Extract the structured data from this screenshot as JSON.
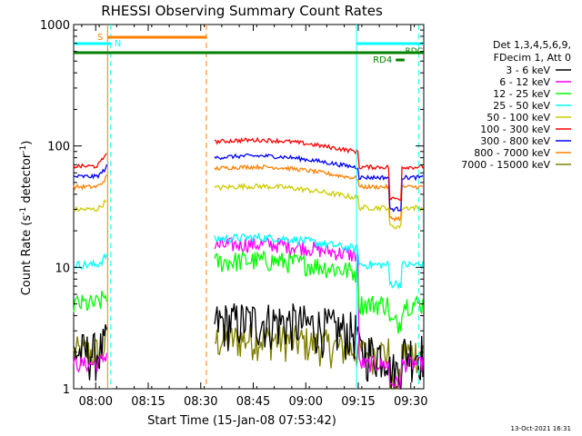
{
  "chart_data": {
    "type": "line",
    "title": "RHESSI Observing Summary Count Rates",
    "xlabel": "Start Time (15-Jan-08 07:53:42)",
    "ylabel_main": "Count Rate (s",
    "ylabel_sup1": "-1",
    "ylabel_mid": " detector",
    "ylabel_sup2": "-1",
    "ylabel_end": ")",
    "yscale": "log",
    "ylim": [
      1,
      1000
    ],
    "xlim_minutes": [
      0,
      100
    ],
    "x_ticks": [
      {
        "label": "08:00",
        "min": 6.3
      },
      {
        "label": "08:15",
        "min": 21.3
      },
      {
        "label": "08:30",
        "min": 36.3
      },
      {
        "label": "08:45",
        "min": 51.3
      },
      {
        "label": "09:00",
        "min": 66.3
      },
      {
        "label": "09:15",
        "min": 81.3
      },
      {
        "label": "09:30",
        "min": 96.3
      }
    ],
    "y_ticks": [
      {
        "label": "1",
        "value": 1
      },
      {
        "label": "10",
        "value": 10
      },
      {
        "label": "100",
        "value": 100
      },
      {
        "label": "1000",
        "value": 1000
      }
    ],
    "legend_header": [
      "Det 1,3,4,5,6,9,",
      "FDecim 1, Att 0"
    ],
    "legend_position": "right",
    "series": [
      {
        "name": "3 - 6 keV",
        "color": "#000000",
        "pre": 2,
        "mid": 3.5,
        "post": 2,
        "noise": 0.45
      },
      {
        "name": "6 - 12 keV",
        "color": "#ff00ff",
        "pre": 1.6,
        "mid": 15,
        "post": 1.6,
        "noise": 0.15
      },
      {
        "name": "12 - 25 keV",
        "color": "#00ff00",
        "pre": 5,
        "mid": 11,
        "post": 5,
        "noise": 0.2
      },
      {
        "name": "25 - 50 keV",
        "color": "#00ffff",
        "pre": 10.5,
        "mid": 17,
        "post": 10.5,
        "noise": 0.08
      },
      {
        "name": "50 - 100 keV",
        "color": "#cccc00",
        "pre": 30,
        "mid": 45,
        "post": 31,
        "noise": 0.05
      },
      {
        "name": "100 - 300 keV",
        "color": "#ff0000",
        "pre": 68,
        "mid": 108,
        "post": 67,
        "noise": 0.04
      },
      {
        "name": "300 - 800 keV",
        "color": "#0000ff",
        "pre": 56,
        "mid": 80,
        "post": 55,
        "noise": 0.04
      },
      {
        "name": "800 - 7000 keV",
        "color": "#ff8000",
        "pre": 46,
        "mid": 65,
        "post": 46,
        "noise": 0.04
      },
      {
        "name": "7000 - 15000 keV",
        "color": "#808000",
        "pre": 2,
        "mid": 2.5,
        "post": 2,
        "noise": 0.35
      }
    ],
    "annotations": {
      "saa": {
        "label": "S",
        "start_min": 9.7,
        "end_min": 37.9,
        "color": "#ff8000"
      },
      "night": [
        {
          "label": "N",
          "start_min": 0,
          "end_min": 10.6,
          "color": "#00ffff"
        },
        {
          "label": "",
          "start_min": 80.8,
          "end_min": 100,
          "color": "#00ffff"
        }
      ],
      "flags": [
        {
          "label": "RD4",
          "start_min": 92.0,
          "end_min": 94.5,
          "color": "#008000"
        },
        {
          "label": "RDC",
          "start_min": 0,
          "end_min": 100,
          "color": "#008000"
        }
      ],
      "vertical_lines": [
        {
          "min": 9.7,
          "color": "#ff8000",
          "dash": false
        },
        {
          "min": 10.6,
          "color": "#00ffff",
          "dash": true
        },
        {
          "min": 37.9,
          "color": "#ff8000",
          "dash": true
        },
        {
          "min": 80.8,
          "color": "#00ffff",
          "dash": false
        },
        {
          "min": 98.6,
          "color": "#00ffff",
          "dash": true
        }
      ]
    },
    "data_gap_minutes": [
      9.7,
      40.0
    ],
    "footer_date": "13-Oct-2021 16:31"
  }
}
